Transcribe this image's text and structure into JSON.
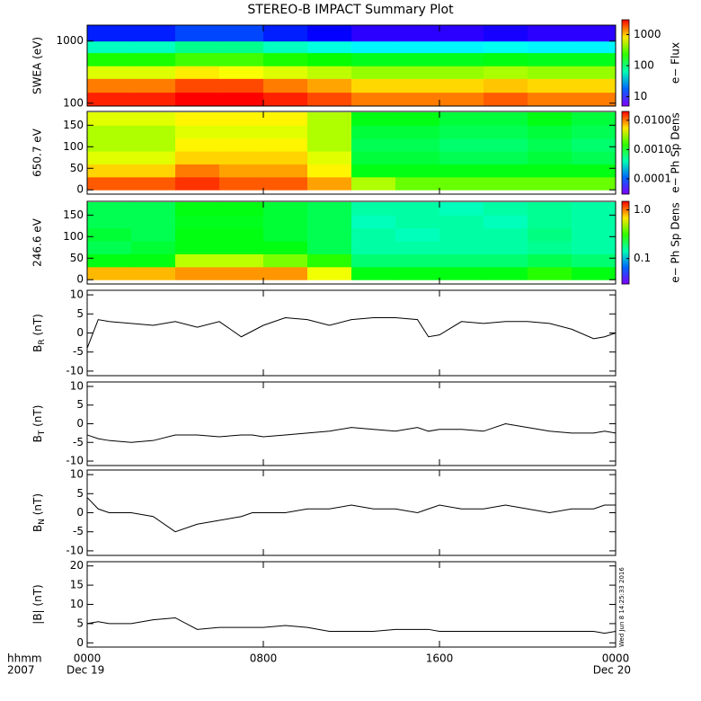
{
  "title": "STEREO-B IMPACT Summary Plot",
  "footer": {
    "format": "hhmm",
    "year": "2007",
    "dates": [
      "Dec 19",
      "Dec 20"
    ],
    "stamp": "Wed Jun  8 14:25:33 2016"
  },
  "chart_data": [
    {
      "type": "heatmap",
      "ylabel": "SWEA (eV)",
      "log_y": true,
      "ylim": [
        90,
        1800
      ],
      "yticks": [
        100,
        1000
      ],
      "x_bins": [
        0,
        2,
        4,
        6,
        8,
        10,
        12,
        14,
        16,
        18,
        20,
        22,
        24
      ],
      "y_bins": [
        90,
        150,
        250,
        400,
        650,
        1000,
        1800
      ],
      "values": [
        [
          2500,
          2500,
          3000,
          3000,
          2500,
          2000,
          1500,
          1500,
          1500,
          1800,
          1500,
          1500
        ],
        [
          1500,
          1500,
          2000,
          2000,
          1500,
          1200,
          900,
          900,
          900,
          1000,
          900,
          900
        ],
        [
          600,
          600,
          800,
          700,
          600,
          500,
          400,
          400,
          400,
          450,
          400,
          400
        ],
        [
          200,
          200,
          250,
          250,
          200,
          180,
          150,
          150,
          150,
          160,
          150,
          150
        ],
        [
          60,
          60,
          80,
          80,
          60,
          50,
          40,
          40,
          40,
          45,
          40,
          40
        ],
        [
          12,
          12,
          15,
          15,
          12,
          10,
          8,
          8,
          8,
          9,
          8,
          8
        ]
      ],
      "log_z": true,
      "zlim": [
        5,
        3000
      ],
      "zticks": [
        10,
        100,
        1000
      ],
      "zlabel": "e− Flux"
    },
    {
      "type": "heatmap",
      "ylabel": "650.7 eV",
      "log_y": false,
      "ylim": [
        -10,
        182
      ],
      "yticks": [
        0,
        50,
        100,
        150
      ],
      "x_bins": [
        0,
        2,
        4,
        6,
        8,
        10,
        12,
        14,
        16,
        18,
        20,
        22,
        24
      ],
      "y_bins": [
        0,
        30,
        60,
        90,
        120,
        150,
        180
      ],
      "values": [
        [
          0.012,
          0.012,
          0.015,
          0.012,
          0.012,
          0.008,
          0.003,
          0.002,
          0.002,
          0.002,
          0.002,
          0.002
        ],
        [
          0.006,
          0.006,
          0.01,
          0.008,
          0.008,
          0.005,
          0.001,
          0.001,
          0.001,
          0.001,
          0.001,
          0.001
        ],
        [
          0.004,
          0.004,
          0.006,
          0.006,
          0.006,
          0.004,
          0.0008,
          0.0008,
          0.0007,
          0.0007,
          0.0008,
          0.0007
        ],
        [
          0.003,
          0.003,
          0.005,
          0.005,
          0.005,
          0.003,
          0.0007,
          0.0007,
          0.0006,
          0.0006,
          0.0007,
          0.0006
        ],
        [
          0.003,
          0.003,
          0.004,
          0.004,
          0.004,
          0.003,
          0.0008,
          0.0008,
          0.0007,
          0.0007,
          0.0008,
          0.0007
        ],
        [
          0.004,
          0.004,
          0.005,
          0.005,
          0.005,
          0.003,
          0.001,
          0.001,
          0.0008,
          0.0008,
          0.001,
          0.0008
        ]
      ],
      "log_z": true,
      "zlim": [
        3e-05,
        0.02
      ],
      "zticks": [
        0.0001,
        {
          "value": 0.001,
          "label": "0.0010"
        },
        {
          "value": 0.01,
          "label": "0.0100"
        }
      ],
      "zlabel": "e− Ph Sp Dens"
    },
    {
      "type": "heatmap",
      "ylabel": "246.6 eV",
      "log_y": false,
      "ylim": [
        -10,
        182
      ],
      "yticks": [
        0,
        50,
        100,
        150
      ],
      "x_bins": [
        0,
        2,
        4,
        6,
        8,
        10,
        12,
        14,
        16,
        18,
        20,
        22,
        24
      ],
      "y_bins": [
        0,
        30,
        60,
        90,
        120,
        150,
        180
      ],
      "values": [
        [
          0.8,
          0.8,
          0.9,
          0.9,
          0.9,
          0.6,
          0.25,
          0.25,
          0.25,
          0.25,
          0.3,
          0.25
        ],
        [
          0.25,
          0.25,
          0.5,
          0.5,
          0.4,
          0.3,
          0.18,
          0.18,
          0.18,
          0.18,
          0.2,
          0.18
        ],
        [
          0.2,
          0.22,
          0.25,
          0.25,
          0.25,
          0.2,
          0.15,
          0.15,
          0.15,
          0.15,
          0.16,
          0.15
        ],
        [
          0.22,
          0.2,
          0.25,
          0.25,
          0.22,
          0.2,
          0.15,
          0.14,
          0.15,
          0.15,
          0.17,
          0.15
        ],
        [
          0.2,
          0.2,
          0.24,
          0.24,
          0.22,
          0.2,
          0.14,
          0.15,
          0.15,
          0.14,
          0.16,
          0.15
        ],
        [
          0.2,
          0.2,
          0.25,
          0.25,
          0.22,
          0.2,
          0.15,
          0.15,
          0.14,
          0.15,
          0.16,
          0.15
        ]
      ],
      "log_z": true,
      "zlim": [
        0.03,
        1.5
      ],
      "zticks": [
        0.1,
        {
          "value": 1,
          "label": "1.0"
        }
      ],
      "zlabel": "e− Ph Sp Dens"
    },
    {
      "type": "line",
      "ylabel": {
        "base": "B",
        "sub": "R",
        "unit": " (nT)"
      },
      "ylim": [
        -11.2,
        11.2
      ],
      "yticks": [
        -10,
        -5,
        0,
        5,
        10
      ],
      "color": "#000000",
      "x": [
        0,
        0.5,
        1,
        2,
        3,
        4,
        5,
        6,
        7,
        7.5,
        8,
        9,
        10,
        11,
        12,
        13,
        14,
        15,
        15.5,
        16,
        17,
        18,
        19,
        20,
        21,
        22,
        23,
        23.5,
        24
      ],
      "values": [
        -4,
        3.5,
        3,
        2.5,
        2,
        3,
        1.5,
        3,
        -1,
        0.5,
        2,
        4,
        3.5,
        2,
        3.5,
        4,
        4,
        3.5,
        -1,
        -0.5,
        3,
        2.5,
        3,
        3,
        2.5,
        1,
        -1.5,
        -1,
        0
      ]
    },
    {
      "type": "line",
      "ylabel": {
        "base": "B",
        "sub": "T",
        "unit": " (nT)"
      },
      "ylim": [
        -11.2,
        11.2
      ],
      "yticks": [
        -10,
        -5,
        0,
        5,
        10
      ],
      "color": "#000000",
      "x": [
        0,
        0.5,
        1,
        2,
        3,
        4,
        5,
        6,
        7,
        7.5,
        8,
        9,
        10,
        11,
        12,
        13,
        14,
        15,
        15.5,
        16,
        17,
        18,
        19,
        20,
        21,
        22,
        23,
        23.5,
        24
      ],
      "values": [
        -3,
        -4,
        -4.5,
        -5,
        -4.5,
        -3,
        -3,
        -3.5,
        -3,
        -3,
        -3.5,
        -3,
        -2.5,
        -2,
        -1,
        -1.5,
        -2,
        -1,
        -2,
        -1.5,
        -1.5,
        -2,
        0,
        -1,
        -2,
        -2.5,
        -2.5,
        -2,
        -2.5
      ]
    },
    {
      "type": "line",
      "ylabel": {
        "base": "B",
        "sub": "N",
        "unit": " (nT)"
      },
      "ylim": [
        -11.2,
        11.2
      ],
      "yticks": [
        -10,
        -5,
        0,
        5,
        10
      ],
      "color": "#000000",
      "x": [
        0,
        0.5,
        1,
        2,
        3,
        4,
        5,
        6,
        7,
        7.5,
        8,
        9,
        10,
        11,
        12,
        13,
        14,
        15,
        15.5,
        16,
        17,
        18,
        19,
        20,
        21,
        22,
        23,
        23.5,
        24
      ],
      "values": [
        4,
        1,
        0,
        0,
        -1,
        -5,
        -3,
        -2,
        -1,
        0,
        0,
        0,
        1,
        1,
        2,
        1,
        1,
        0,
        1,
        2,
        1,
        1,
        2,
        1,
        0,
        1,
        1,
        2,
        2
      ]
    },
    {
      "type": "line",
      "ylabel": {
        "base": "|B|",
        "sub": "",
        "unit": " (nT)"
      },
      "ylim": [
        -1.1,
        21.1
      ],
      "yticks": [
        0,
        5,
        10,
        15,
        20
      ],
      "color": "#000000",
      "x": [
        0,
        0.5,
        1,
        2,
        3,
        4,
        5,
        6,
        7,
        7.5,
        8,
        9,
        10,
        11,
        12,
        13,
        14,
        15,
        15.5,
        16,
        17,
        18,
        19,
        20,
        21,
        22,
        23,
        23.5,
        24
      ],
      "values": [
        5,
        5.5,
        5,
        5,
        6,
        6.5,
        3.5,
        4,
        4,
        4,
        4,
        4.5,
        4,
        3,
        3,
        3,
        3.5,
        3.5,
        3.5,
        3,
        3,
        3,
        3,
        3,
        3,
        3,
        3,
        2.5,
        3
      ],
      "xlim": [
        0,
        24
      ],
      "xticks": [
        {
          "value": 0,
          "label": "0000"
        },
        {
          "value": 8,
          "label": "0800"
        },
        {
          "value": 16,
          "label": "1600"
        },
        {
          "value": 24,
          "label": "0000"
        }
      ]
    }
  ]
}
